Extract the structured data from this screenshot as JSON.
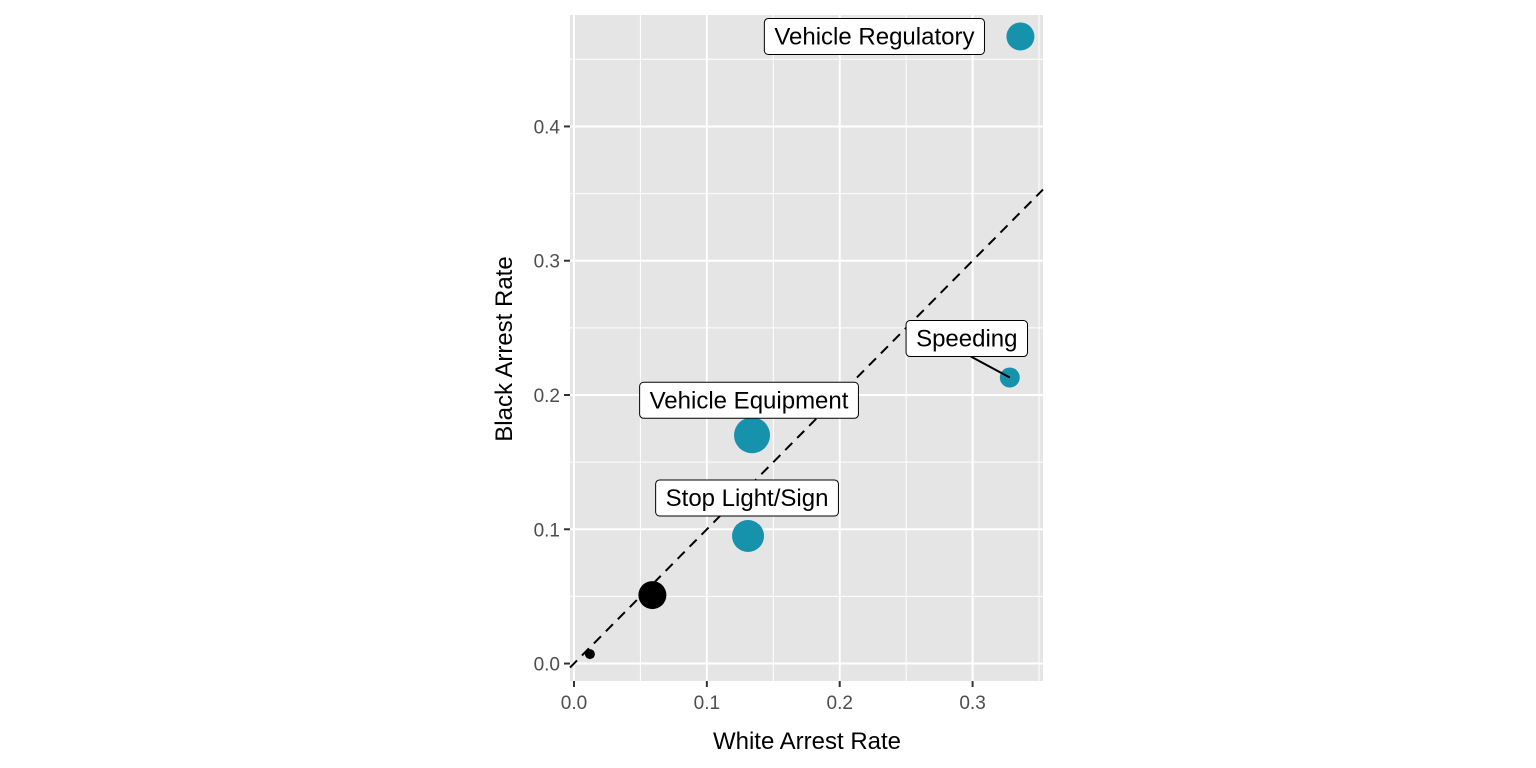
{
  "chart_data": {
    "type": "scatter",
    "xlabel": "White Arrest Rate",
    "ylabel": "Black Arrest Rate",
    "xlim": [
      -0.003,
      0.353
    ],
    "ylim": [
      -0.013,
      0.483
    ],
    "x_ticks": [
      0.0,
      0.1,
      0.2,
      0.3
    ],
    "x_tick_labels": [
      "0.0",
      "0.1",
      "0.2",
      "0.3"
    ],
    "y_ticks": [
      0.0,
      0.1,
      0.2,
      0.3,
      0.4
    ],
    "y_tick_labels": [
      "0.0",
      "0.1",
      "0.2",
      "0.3",
      "0.4"
    ],
    "grid": true,
    "reference_line": {
      "slope": 1,
      "intercept": 0,
      "style": "dashed"
    },
    "colors": {
      "highlight": "#1792ad",
      "base": "#000000",
      "panel": "#e5e5e5",
      "grid": "#ffffff"
    },
    "points": [
      {
        "x": 0.336,
        "y": 0.467,
        "r": 14,
        "color": "#1792ad",
        "label": "Vehicle Regulatory"
      },
      {
        "x": 0.328,
        "y": 0.213,
        "r": 10,
        "color": "#1792ad",
        "label": "Speeding"
      },
      {
        "x": 0.134,
        "y": 0.17,
        "r": 18,
        "color": "#1792ad",
        "label": "Vehicle Equipment"
      },
      {
        "x": 0.131,
        "y": 0.095,
        "r": 16,
        "color": "#1792ad",
        "label": "Stop Light/Sign"
      },
      {
        "x": 0.059,
        "y": 0.051,
        "r": 14,
        "color": "#000000",
        "label": ""
      },
      {
        "x": 0.012,
        "y": 0.007,
        "r": 5,
        "color": "#000000",
        "label": ""
      }
    ]
  }
}
